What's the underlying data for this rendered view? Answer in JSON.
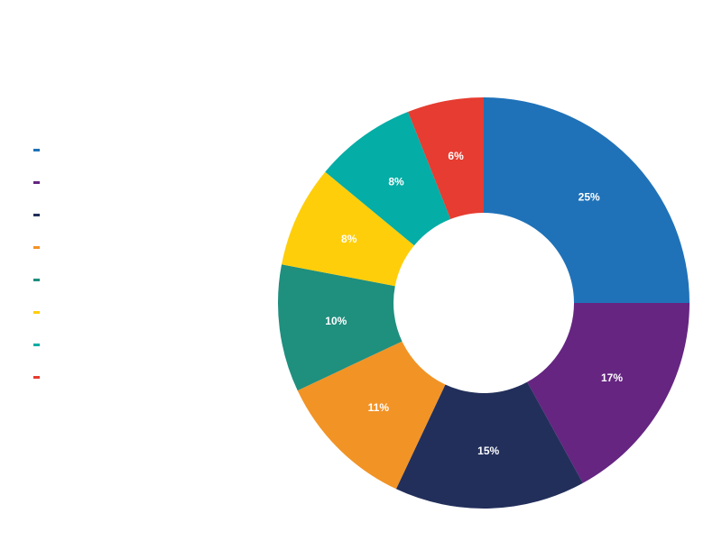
{
  "chart_data": {
    "type": "pie",
    "variant": "donut",
    "values": [
      25,
      17,
      15,
      11,
      10,
      8,
      8,
      6
    ],
    "labels": [
      "25%",
      "17%",
      "15%",
      "11%",
      "10%",
      "8%",
      "8%",
      "6%"
    ],
    "colors": [
      "#1f72b8",
      "#652581",
      "#222f5b",
      "#f29325",
      "#1f8f7e",
      "#ffce0b",
      "#04ada5",
      "#e63c31"
    ],
    "start": "top",
    "direction": "clockwise",
    "legend_position": "left"
  }
}
